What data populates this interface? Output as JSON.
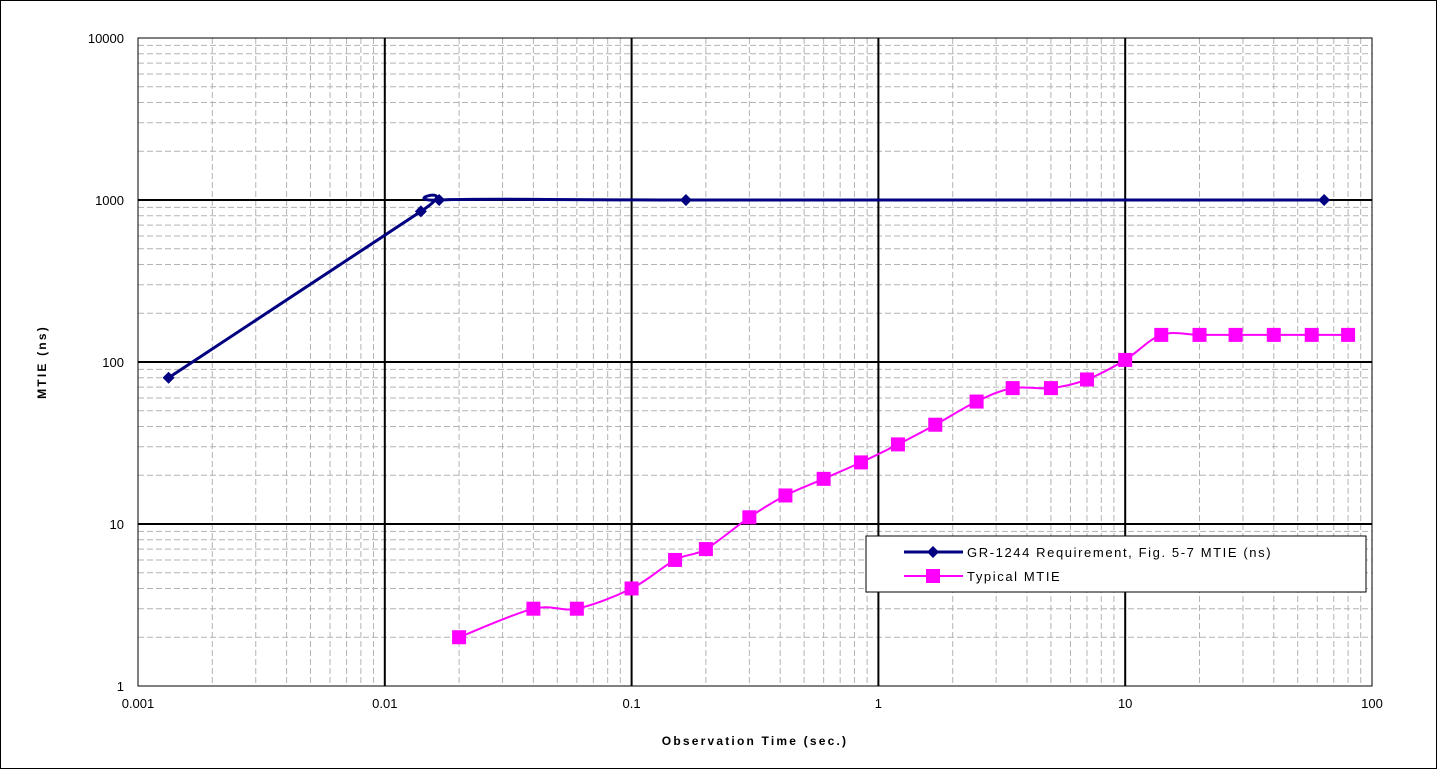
{
  "chart_data": {
    "type": "line",
    "title": "",
    "xlabel": "Observation Time (sec.)",
    "ylabel": "MTIE (ns)",
    "xscale": "log",
    "yscale": "log",
    "xlim": [
      0.001,
      100
    ],
    "ylim": [
      1,
      10000
    ],
    "x_ticks": [
      "0.001",
      "0.01",
      "0.1",
      "1",
      "10",
      "100"
    ],
    "y_ticks": [
      "1",
      "10",
      "100",
      "1000",
      "10000"
    ],
    "grid": true,
    "legend_position": "lower-right",
    "series": [
      {
        "name": "GR-1244 Requirement, Fig. 5-7 MTIE (ns)",
        "color": "#000080",
        "marker": "diamond",
        "x": [
          0.00133,
          0.014,
          0.0166,
          0.166,
          64
        ],
        "y": [
          80,
          850,
          1000,
          1000,
          1000
        ]
      },
      {
        "name": "Typical MTIE",
        "color": "#ff00ff",
        "marker": "square",
        "x": [
          0.02,
          0.04,
          0.06,
          0.1,
          0.15,
          0.2,
          0.3,
          0.42,
          0.6,
          0.85,
          1.2,
          1.7,
          2.5,
          3.5,
          5,
          7,
          10,
          14,
          20,
          28,
          40,
          57,
          80
        ],
        "y": [
          2,
          3,
          3,
          4,
          6,
          7,
          11,
          15,
          19,
          24,
          31,
          41,
          57,
          69,
          69,
          78,
          103,
          147,
          147,
          147,
          147,
          147,
          147
        ]
      }
    ]
  }
}
